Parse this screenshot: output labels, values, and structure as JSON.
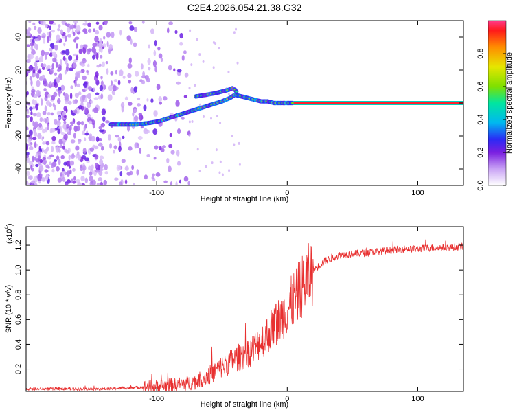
{
  "title": "C2E4.2026.054.21.38.G32",
  "chart_data": [
    {
      "type": "heatmap",
      "name": "spectrogram",
      "xlabel": "Height of straight line (km)",
      "ylabel": "Frequency (Hz)",
      "xlim": [
        -200,
        135
      ],
      "ylim": [
        -50,
        50
      ],
      "xticks": [
        -100,
        0,
        100
      ],
      "yticks": [
        -40,
        -20,
        0,
        20,
        40
      ],
      "xtick_labels": [
        "-100",
        "0",
        "100"
      ],
      "ytick_labels": [
        "-40",
        "-20",
        "0",
        "20",
        "40"
      ],
      "colorbar": {
        "label": "Normalized spectral amplitude",
        "range": [
          0,
          1
        ],
        "ticks": [
          0.0,
          0.2,
          0.4,
          0.6,
          0.8
        ],
        "tick_labels": [
          "0.0",
          "0.2",
          "0.4",
          "0.6",
          "0.8"
        ]
      },
      "features": {
        "carrier_line": {
          "x_from": 5,
          "x_to": 135,
          "frequency": 0,
          "amplitude": 0.95
        },
        "main_trace": [
          [
            -135,
            -13
          ],
          [
            -125,
            -13
          ],
          [
            -115,
            -13
          ],
          [
            -105,
            -12
          ],
          [
            -98,
            -11
          ],
          [
            -90,
            -9
          ],
          [
            -82,
            -7
          ],
          [
            -74,
            -5
          ],
          [
            -66,
            -3
          ],
          [
            -58,
            -1
          ],
          [
            -50,
            1
          ],
          [
            -44,
            3
          ],
          [
            -40,
            5
          ],
          [
            -35,
            4
          ],
          [
            -30,
            3
          ],
          [
            -25,
            2
          ],
          [
            -20,
            1
          ],
          [
            -15,
            1
          ],
          [
            -10,
            0
          ],
          [
            -5,
            0
          ],
          [
            0,
            0
          ],
          [
            5,
            0
          ]
        ],
        "upper_trace": [
          [
            -70,
            4
          ],
          [
            -62,
            5
          ],
          [
            -55,
            6
          ],
          [
            -50,
            7
          ],
          [
            -45,
            8
          ],
          [
            -42,
            9
          ],
          [
            -40,
            8
          ],
          [
            -38,
            6
          ]
        ],
        "noise_region_x": [
          -200,
          -75
        ]
      }
    },
    {
      "type": "line",
      "name": "snr",
      "xlabel": "Height of straight line (km)",
      "ylabel": "SNR (10 * v/v)",
      "multiplier_label": "(x10",
      "multiplier_exp": "4",
      "multiplier_close": ")",
      "xlim": [
        -200,
        135
      ],
      "ylim": [
        0.02,
        1.35
      ],
      "xticks": [
        -100,
        0,
        100
      ],
      "yticks": [
        0.2,
        0.4,
        0.6,
        0.8,
        1.0,
        1.2
      ],
      "xtick_labels": [
        "-100",
        "0",
        "100"
      ],
      "ytick_labels": [
        "0.2",
        "0.4",
        "0.6",
        "0.8",
        "1.0",
        "1.2"
      ],
      "line_color": "#e83030",
      "series": {
        "x": [
          -200,
          -180,
          -160,
          -140,
          -120,
          -100,
          -90,
          -80,
          -70,
          -60,
          -50,
          -40,
          -30,
          -20,
          -10,
          0,
          10,
          20,
          30,
          40,
          50,
          60,
          70,
          80,
          90,
          100,
          110,
          120,
          135
        ],
        "y": [
          0.04,
          0.04,
          0.04,
          0.04,
          0.05,
          0.06,
          0.07,
          0.08,
          0.1,
          0.15,
          0.22,
          0.28,
          0.33,
          0.42,
          0.55,
          0.68,
          0.85,
          1.0,
          1.08,
          1.12,
          1.13,
          1.14,
          1.15,
          1.16,
          1.17,
          1.17,
          1.18,
          1.18,
          1.19
        ]
      }
    }
  ]
}
